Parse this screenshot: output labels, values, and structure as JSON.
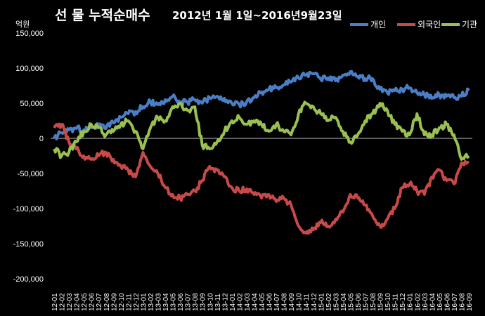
{
  "chart_data": {
    "type": "line",
    "title": "선 물 누적순매수",
    "subtitle": "2012년 1월 1일~2016년9월23일",
    "ylabel": "억원",
    "ylim": [
      -200000,
      150000
    ],
    "yticks": [
      "150,000",
      "100,000",
      "50,000",
      "0",
      "-50,000",
      "-100,000",
      "-150,000",
      "-200,000"
    ],
    "ytick_values": [
      150000,
      100000,
      50000,
      0,
      -50000,
      -100000,
      -150000,
      -200000
    ],
    "xlabel": "",
    "categories": [
      "12-01",
      "12-02",
      "12-03",
      "12-04",
      "12-05",
      "12-06",
      "12-07",
      "12-08",
      "12-09",
      "12-10",
      "12-11",
      "12-12",
      "13-01",
      "13-02",
      "13-03",
      "13-04",
      "13-05",
      "13-06",
      "13-07",
      "13-08",
      "13-09",
      "13-10",
      "13-11",
      "13-12",
      "14-01",
      "14-02",
      "14-03",
      "14-04",
      "14-05",
      "14-06",
      "14-07",
      "14-08",
      "14-09",
      "14-10",
      "14-11",
      "14-12",
      "15-01",
      "15-02",
      "15-03",
      "15-04",
      "15-05",
      "15-06",
      "15-07",
      "15-08",
      "15-09",
      "15-10",
      "15-11",
      "15-12",
      "16-01",
      "16-02",
      "16-03",
      "16-04",
      "16-05",
      "16-06",
      "16-07",
      "16-08",
      "16-09"
    ],
    "legend_position": "top-right",
    "grid": false,
    "series": [
      {
        "name": "개인",
        "color": "#4a7fc8",
        "values": [
          0,
          8000,
          12000,
          14000,
          12000,
          15000,
          18000,
          14000,
          22000,
          30000,
          35000,
          38000,
          45000,
          52000,
          48000,
          55000,
          60000,
          50000,
          52000,
          55000,
          50000,
          58000,
          60000,
          57000,
          50000,
          48000,
          52000,
          58000,
          66000,
          70000,
          72000,
          76000,
          80000,
          86000,
          90000,
          92000,
          84000,
          86000,
          82000,
          90000,
          95000,
          88000,
          85000,
          85000,
          70000,
          65000,
          68000,
          70000,
          72000,
          65000,
          62000,
          57000,
          62000,
          60000,
          58000,
          60000,
          68000
        ]
      },
      {
        "name": "외국인",
        "color": "#c84a48",
        "values": [
          15000,
          20000,
          -5000,
          -15000,
          -25000,
          -30000,
          -25000,
          -20000,
          -30000,
          -40000,
          -45000,
          -55000,
          -20000,
          -40000,
          -50000,
          -70000,
          -80000,
          -85000,
          -80000,
          -75000,
          -60000,
          -40000,
          -45000,
          -55000,
          -70000,
          -75000,
          -72000,
          -80000,
          -85000,
          -80000,
          -90000,
          -85000,
          -95000,
          -125000,
          -135000,
          -130000,
          -120000,
          -125000,
          -115000,
          -105000,
          -80000,
          -85000,
          -95000,
          -110000,
          -125000,
          -115000,
          -100000,
          -70000,
          -65000,
          -75000,
          -80000,
          -55000,
          -45000,
          -60000,
          -65000,
          -35000,
          -35000
        ]
      },
      {
        "name": "기관",
        "color": "#9ac150",
        "values": [
          -15000,
          -25000,
          -20000,
          -5000,
          10000,
          20000,
          15000,
          5000,
          10000,
          20000,
          25000,
          10000,
          -15000,
          15000,
          30000,
          25000,
          45000,
          50000,
          40000,
          45000,
          -10000,
          -15000,
          -5000,
          10000,
          25000,
          30000,
          20000,
          25000,
          20000,
          10000,
          20000,
          10000,
          5000,
          35000,
          50000,
          45000,
          35000,
          25000,
          30000,
          10000,
          -5000,
          5000,
          25000,
          35000,
          50000,
          40000,
          20000,
          10000,
          5000,
          35000,
          5000,
          5000,
          15000,
          20000,
          5000,
          -30000,
          -25000
        ]
      }
    ]
  }
}
